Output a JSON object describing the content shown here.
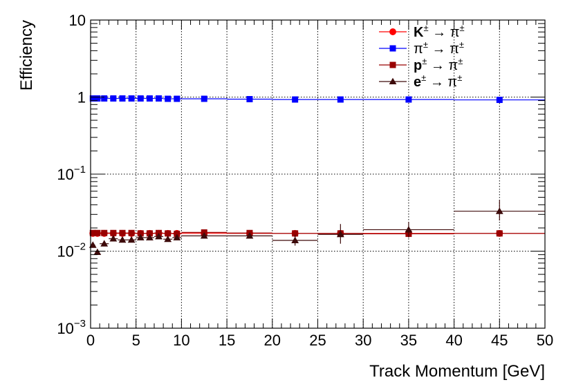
{
  "chart_data": {
    "type": "scatter",
    "title": "",
    "xlabel": "Track Momentum [GeV]",
    "ylabel": "Efficiency",
    "xlim": [
      0,
      50
    ],
    "ylim": [
      0.001,
      10
    ],
    "yscale": "log",
    "grid": true,
    "legend_position": "top-right",
    "x_ticks": [
      "0",
      "5",
      "10",
      "15",
      "20",
      "25",
      "30",
      "35",
      "40",
      "45",
      "50"
    ],
    "y_ticks": [
      {
        "value": 0.001,
        "base": "10",
        "exp": "−3"
      },
      {
        "value": 0.01,
        "base": "10",
        "exp": "−2"
      },
      {
        "value": 0.1,
        "base": "10",
        "exp": "−1"
      },
      {
        "value": 1,
        "base": "1",
        "exp": ""
      },
      {
        "value": 10,
        "base": "10",
        "exp": ""
      }
    ],
    "series": [
      {
        "name": "K",
        "legend_main": "K",
        "legend_sup": "±",
        "legend_rest": " → π",
        "legend_rest_sup": "±",
        "bold": true,
        "color": "#ff0000",
        "marker": "circle",
        "points": [
          {
            "x": 0.25,
            "xerr": 0.25,
            "y": 0.017
          },
          {
            "x": 0.75,
            "xerr": 0.25,
            "y": 0.017
          },
          {
            "x": 1.5,
            "xerr": 0.5,
            "y": 0.017
          },
          {
            "x": 2.5,
            "xerr": 0.5,
            "y": 0.017
          },
          {
            "x": 3.5,
            "xerr": 0.5,
            "y": 0.017
          },
          {
            "x": 4.5,
            "xerr": 0.5,
            "y": 0.017
          },
          {
            "x": 5.5,
            "xerr": 0.5,
            "y": 0.017
          },
          {
            "x": 6.5,
            "xerr": 0.5,
            "y": 0.017
          },
          {
            "x": 7.5,
            "xerr": 0.5,
            "y": 0.017
          },
          {
            "x": 8.5,
            "xerr": 0.5,
            "y": 0.017
          },
          {
            "x": 9.5,
            "xerr": 0.5,
            "y": 0.017
          },
          {
            "x": 12.5,
            "xerr": 2.5,
            "y": 0.017
          },
          {
            "x": 17.5,
            "xerr": 2.5,
            "y": 0.017
          },
          {
            "x": 22.5,
            "xerr": 2.5,
            "y": 0.017
          },
          {
            "x": 27.5,
            "xerr": 2.5,
            "y": 0.017
          },
          {
            "x": 35,
            "xerr": 5,
            "y": 0.017
          },
          {
            "x": 45,
            "xerr": 5,
            "y": 0.017
          }
        ]
      },
      {
        "name": "π",
        "legend_main": "π",
        "legend_sup": "±",
        "legend_rest": " → π",
        "legend_rest_sup": "±",
        "bold": false,
        "color": "#0000ff",
        "marker": "square",
        "points": [
          {
            "x": 0.25,
            "xerr": 0.25,
            "y": 0.96
          },
          {
            "x": 0.75,
            "xerr": 0.25,
            "y": 0.96
          },
          {
            "x": 1.5,
            "xerr": 0.5,
            "y": 0.96
          },
          {
            "x": 2.5,
            "xerr": 0.5,
            "y": 0.96
          },
          {
            "x": 3.5,
            "xerr": 0.5,
            "y": 0.96
          },
          {
            "x": 4.5,
            "xerr": 0.5,
            "y": 0.96
          },
          {
            "x": 5.5,
            "xerr": 0.5,
            "y": 0.96
          },
          {
            "x": 6.5,
            "xerr": 0.5,
            "y": 0.96
          },
          {
            "x": 7.5,
            "xerr": 0.5,
            "y": 0.96
          },
          {
            "x": 8.5,
            "xerr": 0.5,
            "y": 0.95
          },
          {
            "x": 9.5,
            "xerr": 0.5,
            "y": 0.95
          },
          {
            "x": 12.5,
            "xerr": 2.5,
            "y": 0.95
          },
          {
            "x": 17.5,
            "xerr": 2.5,
            "y": 0.94
          },
          {
            "x": 22.5,
            "xerr": 2.5,
            "y": 0.93
          },
          {
            "x": 27.5,
            "xerr": 2.5,
            "y": 0.93
          },
          {
            "x": 35,
            "xerr": 5,
            "y": 0.93
          },
          {
            "x": 45,
            "xerr": 5,
            "y": 0.92
          }
        ]
      },
      {
        "name": "p",
        "legend_main": "p",
        "legend_sup": "±",
        "legend_rest": " → π",
        "legend_rest_sup": "±",
        "bold": true,
        "color": "#990000",
        "marker": "square",
        "points": [
          {
            "x": 0.25,
            "xerr": 0.25,
            "y": 0.0172
          },
          {
            "x": 0.75,
            "xerr": 0.25,
            "y": 0.0172
          },
          {
            "x": 1.5,
            "xerr": 0.5,
            "y": 0.0172
          },
          {
            "x": 2.5,
            "xerr": 0.5,
            "y": 0.0172
          },
          {
            "x": 3.5,
            "xerr": 0.5,
            "y": 0.0172
          },
          {
            "x": 4.5,
            "xerr": 0.5,
            "y": 0.0172
          },
          {
            "x": 5.5,
            "xerr": 0.5,
            "y": 0.017
          },
          {
            "x": 6.5,
            "xerr": 0.5,
            "y": 0.017
          },
          {
            "x": 7.5,
            "xerr": 0.5,
            "y": 0.0172
          },
          {
            "x": 8.5,
            "xerr": 0.5,
            "y": 0.017
          },
          {
            "x": 9.5,
            "xerr": 0.5,
            "y": 0.0168
          },
          {
            "x": 12.5,
            "xerr": 2.5,
            "y": 0.0175
          },
          {
            "x": 17.5,
            "xerr": 2.5,
            "y": 0.0172
          },
          {
            "x": 22.5,
            "xerr": 2.5,
            "y": 0.017
          },
          {
            "x": 27.5,
            "xerr": 2.5,
            "y": 0.017
          },
          {
            "x": 35,
            "xerr": 5,
            "y": 0.0168
          },
          {
            "x": 45,
            "xerr": 5,
            "y": 0.017
          }
        ]
      },
      {
        "name": "e",
        "legend_main": "e",
        "legend_sup": "±",
        "legend_rest": " → π",
        "legend_rest_sup": "±",
        "bold": true,
        "color": "#3d0a0a",
        "marker": "triangle",
        "points": [
          {
            "x": 0.25,
            "xerr": 0.25,
            "y": 0.012
          },
          {
            "x": 0.75,
            "xerr": 0.25,
            "y": 0.0097
          },
          {
            "x": 1.5,
            "xerr": 0.5,
            "y": 0.0125
          },
          {
            "x": 2.5,
            "xerr": 0.5,
            "y": 0.0145
          },
          {
            "x": 3.5,
            "xerr": 0.5,
            "y": 0.014
          },
          {
            "x": 4.5,
            "xerr": 0.5,
            "y": 0.014
          },
          {
            "x": 5.5,
            "xerr": 0.5,
            "y": 0.015
          },
          {
            "x": 6.5,
            "xerr": 0.5,
            "y": 0.015
          },
          {
            "x": 7.5,
            "xerr": 0.5,
            "y": 0.0155
          },
          {
            "x": 8.5,
            "xerr": 0.5,
            "y": 0.0143
          },
          {
            "x": 9.5,
            "xerr": 0.5,
            "y": 0.015
          },
          {
            "x": 12.5,
            "xerr": 2.5,
            "y": 0.0158
          },
          {
            "x": 17.5,
            "xerr": 2.5,
            "y": 0.0158
          },
          {
            "x": 22.5,
            "xerr": 2.5,
            "y": 0.0138,
            "yerr_lo": 0.002,
            "yerr_hi": 0.0025
          },
          {
            "x": 27.5,
            "xerr": 2.5,
            "y": 0.0165,
            "yerr_lo": 0.004,
            "yerr_hi": 0.006
          },
          {
            "x": 35,
            "xerr": 5,
            "y": 0.019,
            "yerr_lo": 0.004,
            "yerr_hi": 0.005
          },
          {
            "x": 45,
            "xerr": 5,
            "y": 0.033,
            "yerr_lo": 0.008,
            "yerr_hi": 0.013
          }
        ]
      }
    ]
  }
}
